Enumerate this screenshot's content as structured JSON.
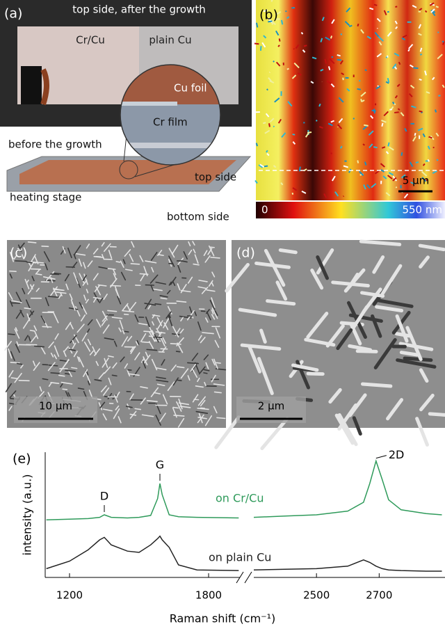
{
  "panels": {
    "a": {
      "label": "(a)",
      "title": "top side, after the growth",
      "left_region": "Cr/Cu",
      "right_region": "plain Cu",
      "foil": "Cu foil",
      "film": "Cr film",
      "before": "before the growth",
      "top": "top side",
      "stage": "heating stage",
      "bottom": "bottom side"
    },
    "b": {
      "label": "(b)",
      "scale_bar": "5 µm",
      "colorbar_min": "0",
      "colorbar_max": "550 nm"
    },
    "c": {
      "label": "(c)",
      "scale_bar": "10 µm"
    },
    "d": {
      "label": "(d)",
      "scale_bar": "2 µm"
    }
  },
  "chart_data": {
    "type": "line",
    "label": "(e)",
    "x_label": "Raman shift (cm⁻¹)",
    "y_label": "intensity (a.u.)",
    "x_segments": [
      {
        "xlim": [
          1095,
          1935
        ],
        "xticks": [
          1200,
          1800
        ]
      },
      {
        "xlim": [
          2300,
          2910
        ],
        "xticks": [
          2500,
          2700
        ]
      }
    ],
    "ylim": [
      0,
      10
    ],
    "x": [
      1100,
      1200,
      1280,
      1330,
      1350,
      1380,
      1450,
      1500,
      1550,
      1580,
      1590,
      1600,
      1630,
      1670,
      1750,
      1930,
      2100,
      2300,
      2400,
      2500,
      2600,
      2650,
      2670,
      2690,
      2710,
      2730,
      2770,
      2850,
      2900
    ],
    "series": [
      {
        "name": "on Cr/Cu",
        "color": "#2e9a5a",
        "values": [
          4.6,
          4.65,
          4.7,
          4.8,
          5.0,
          4.8,
          4.75,
          4.8,
          4.95,
          6.3,
          7.5,
          6.6,
          5.0,
          4.85,
          4.8,
          4.75,
          null,
          4.8,
          4.9,
          5.0,
          5.3,
          6.0,
          7.5,
          9.3,
          7.8,
          6.2,
          5.4,
          5.1,
          5.0
        ]
      },
      {
        "name": "on plain Cu",
        "color": "#222222",
        "values": [
          0.7,
          1.3,
          2.2,
          3.0,
          3.2,
          2.6,
          2.1,
          2.0,
          2.6,
          3.1,
          3.3,
          3.0,
          2.4,
          1.0,
          0.6,
          0.55,
          null,
          0.6,
          0.65,
          0.7,
          0.9,
          1.4,
          1.2,
          0.9,
          0.7,
          0.6,
          0.55,
          0.5,
          0.5
        ]
      }
    ],
    "annotations": [
      {
        "text": "D",
        "x": 1350
      },
      {
        "text": "G",
        "x": 1590
      },
      {
        "text": "2D",
        "x": 2690
      }
    ]
  }
}
